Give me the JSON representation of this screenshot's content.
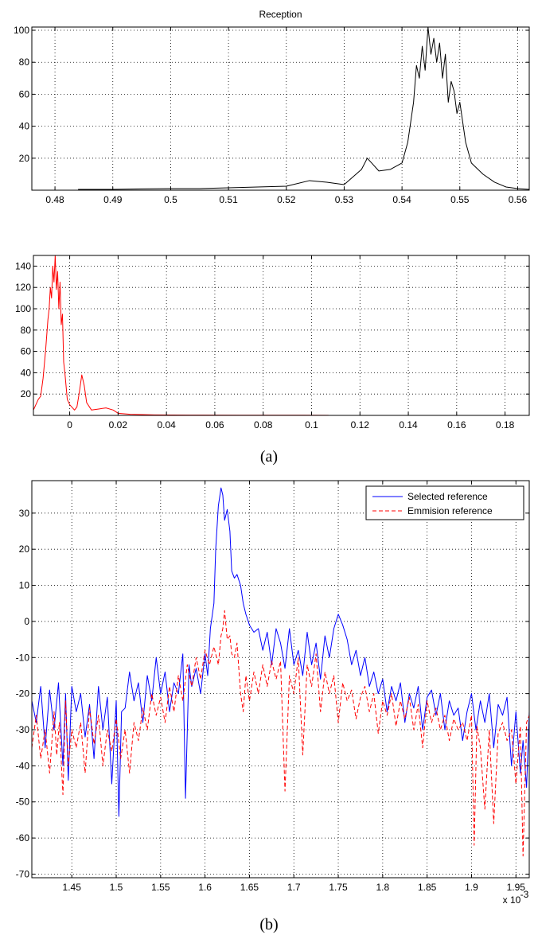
{
  "captions": {
    "a": "(a)",
    "b": "(b)"
  },
  "chart_data": [
    {
      "type": "line",
      "title": "Reception",
      "xlim": [
        0.476,
        0.562
      ],
      "ylim": [
        0,
        102
      ],
      "xticks": [
        0.48,
        0.49,
        0.5,
        0.51,
        0.52,
        0.53,
        0.54,
        0.55,
        0.56
      ],
      "xtick_labels": [
        "0.48",
        "0.49",
        "0.5",
        "0.51",
        "0.52",
        "0.53",
        "0.54",
        "0.55",
        "0.56"
      ],
      "yticks": [
        20,
        40,
        60,
        80,
        100
      ],
      "ytick_labels": [
        "20",
        "40",
        "60",
        "80",
        "100"
      ],
      "grid": true,
      "series": [
        {
          "color": "#000000",
          "x": [
            0.484,
            0.49,
            0.495,
            0.5,
            0.505,
            0.51,
            0.515,
            0.52,
            0.524,
            0.527,
            0.53,
            0.533,
            0.534,
            0.535,
            0.536,
            0.538,
            0.54,
            0.541,
            0.542,
            0.5425,
            0.543,
            0.5435,
            0.544,
            0.5445,
            0.545,
            0.5455,
            0.546,
            0.5465,
            0.547,
            0.5475,
            0.548,
            0.5485,
            0.549,
            0.5495,
            0.55,
            0.551,
            0.552,
            0.554,
            0.556,
            0.558,
            0.56,
            0.562
          ],
          "y": [
            0.5,
            0.5,
            0.8,
            1,
            1,
            1.5,
            2,
            2.5,
            6,
            5,
            3.5,
            13,
            20,
            16,
            12,
            13,
            17,
            30,
            55,
            78,
            70,
            90,
            75,
            102,
            85,
            95,
            80,
            92,
            70,
            85,
            55,
            68,
            62,
            48,
            55,
            30,
            17,
            10,
            5,
            2,
            1,
            0.5
          ]
        }
      ]
    },
    {
      "type": "line",
      "xlim": [
        -0.015,
        0.19
      ],
      "ylim": [
        0,
        150
      ],
      "xticks": [
        0,
        0.02,
        0.04,
        0.06,
        0.08,
        0.1,
        0.12,
        0.14,
        0.16,
        0.18
      ],
      "xtick_labels": [
        "0",
        "0.02",
        "0.04",
        "0.06",
        "0.08",
        "0.1",
        "0.12",
        "0.14",
        "0.16",
        "0.18"
      ],
      "yticks": [
        20,
        40,
        60,
        80,
        100,
        120,
        140
      ],
      "ytick_labels": [
        "20",
        "40",
        "60",
        "80",
        "100",
        "120",
        "140"
      ],
      "grid": true,
      "series": [
        {
          "color": "#ff0000",
          "x": [
            -0.015,
            -0.013,
            -0.012,
            -0.011,
            -0.01,
            -0.009,
            -0.0085,
            -0.008,
            -0.0075,
            -0.007,
            -0.0065,
            -0.006,
            -0.0055,
            -0.005,
            -0.0045,
            -0.004,
            -0.0035,
            -0.003,
            -0.0025,
            -0.002,
            -0.001,
            0.0,
            0.002,
            0.003,
            0.004,
            0.005,
            0.006,
            0.007,
            0.009,
            0.012,
            0.015,
            0.018,
            0.02,
            0.025,
            0.035,
            0.05,
            0.07,
            0.09,
            0.107
          ],
          "y": [
            5,
            15,
            18,
            35,
            60,
            90,
            100,
            120,
            110,
            140,
            125,
            150,
            118,
            135,
            100,
            125,
            85,
            95,
            50,
            40,
            15,
            10,
            5,
            8,
            22,
            38,
            28,
            12,
            5,
            6,
            7,
            5,
            2,
            1,
            0.5,
            0.3,
            0.2,
            0.2,
            0.1
          ]
        }
      ]
    },
    {
      "type": "line",
      "xlim": [
        1.405,
        1.965
      ],
      "ylim": [
        -71,
        39
      ],
      "xticks": [
        1.45,
        1.5,
        1.55,
        1.6,
        1.65,
        1.7,
        1.75,
        1.8,
        1.85,
        1.9,
        1.95
      ],
      "xtick_labels": [
        "1.45",
        "1.5",
        "1.55",
        "1.6",
        "1.65",
        "1.7",
        "1.75",
        "1.8",
        "1.85",
        "1.9",
        "1.95"
      ],
      "x_multiplier": "x 10",
      "x_multiplier_exp": "-3",
      "yticks": [
        -70,
        -60,
        -50,
        -40,
        -30,
        -20,
        -10,
        0,
        10,
        20,
        30
      ],
      "ytick_labels": [
        "-70",
        "-60",
        "-50",
        "-40",
        "-30",
        "-20",
        "-10",
        "0",
        "10",
        "20",
        "30"
      ],
      "grid": true,
      "legend": "top-right",
      "series": [
        {
          "name": "Selected reference",
          "color": "#0000ff",
          "style": "solid",
          "x": [
            1.405,
            1.41,
            1.415,
            1.42,
            1.425,
            1.43,
            1.435,
            1.44,
            1.443,
            1.446,
            1.45,
            1.455,
            1.46,
            1.465,
            1.47,
            1.475,
            1.48,
            1.485,
            1.49,
            1.495,
            1.5,
            1.503,
            1.506,
            1.51,
            1.515,
            1.52,
            1.525,
            1.53,
            1.535,
            1.54,
            1.545,
            1.55,
            1.555,
            1.56,
            1.565,
            1.57,
            1.575,
            1.578,
            1.582,
            1.585,
            1.59,
            1.595,
            1.6,
            1.603,
            1.606,
            1.61,
            1.612,
            1.615,
            1.618,
            1.62,
            1.622,
            1.625,
            1.628,
            1.63,
            1.633,
            1.636,
            1.64,
            1.643,
            1.646,
            1.65,
            1.655,
            1.66,
            1.665,
            1.67,
            1.675,
            1.68,
            1.685,
            1.69,
            1.695,
            1.7,
            1.705,
            1.71,
            1.715,
            1.72,
            1.725,
            1.73,
            1.735,
            1.74,
            1.745,
            1.75,
            1.755,
            1.76,
            1.765,
            1.77,
            1.775,
            1.78,
            1.785,
            1.79,
            1.795,
            1.8,
            1.805,
            1.81,
            1.815,
            1.82,
            1.825,
            1.83,
            1.835,
            1.84,
            1.845,
            1.85,
            1.855,
            1.86,
            1.865,
            1.87,
            1.875,
            1.88,
            1.885,
            1.89,
            1.895,
            1.9,
            1.905,
            1.91,
            1.915,
            1.92,
            1.925,
            1.93,
            1.935,
            1.94,
            1.945,
            1.95,
            1.955,
            1.958,
            1.962,
            1.965
          ],
          "y": [
            -22,
            -28,
            -18,
            -35,
            -19,
            -30,
            -17,
            -40,
            -20,
            -44,
            -18,
            -25,
            -20,
            -32,
            -23,
            -38,
            -18,
            -30,
            -21,
            -45,
            -22,
            -54,
            -25,
            -24,
            -14,
            -22,
            -17,
            -28,
            -15,
            -22,
            -10,
            -20,
            -14,
            -25,
            -17,
            -20,
            -9,
            -49,
            -12,
            -18,
            -13,
            -20,
            -9,
            -15,
            -2,
            5,
            20,
            32,
            37,
            35,
            28,
            31,
            25,
            14,
            12,
            13,
            10,
            5,
            2,
            -1,
            -3,
            -2,
            -8,
            -3,
            -12,
            -2,
            -6,
            -13,
            -2,
            -12,
            -8,
            -15,
            -3,
            -12,
            -6,
            -16,
            -4,
            -10,
            -2,
            2,
            -1,
            -5,
            -12,
            -8,
            -15,
            -10,
            -18,
            -14,
            -20,
            -16,
            -25,
            -18,
            -22,
            -17,
            -28,
            -20,
            -24,
            -18,
            -30,
            -21,
            -19,
            -26,
            -20,
            -30,
            -22,
            -26,
            -24,
            -33,
            -25,
            -20,
            -30,
            -22,
            -28,
            -20,
            -35,
            -23,
            -26,
            -21,
            -40,
            -25,
            -42,
            -33,
            -46,
            -25
          ]
        },
        {
          "name": "Emmision reference",
          "color": "#ff0000",
          "style": "dashed",
          "x": [
            1.405,
            1.41,
            1.415,
            1.42,
            1.425,
            1.43,
            1.433,
            1.436,
            1.44,
            1.443,
            1.446,
            1.45,
            1.455,
            1.46,
            1.465,
            1.47,
            1.475,
            1.48,
            1.485,
            1.49,
            1.495,
            1.5,
            1.505,
            1.51,
            1.515,
            1.52,
            1.525,
            1.53,
            1.535,
            1.54,
            1.545,
            1.55,
            1.555,
            1.56,
            1.565,
            1.57,
            1.575,
            1.58,
            1.585,
            1.59,
            1.595,
            1.6,
            1.605,
            1.61,
            1.615,
            1.618,
            1.62,
            1.622,
            1.625,
            1.628,
            1.63,
            1.633,
            1.636,
            1.64,
            1.643,
            1.646,
            1.65,
            1.655,
            1.66,
            1.665,
            1.67,
            1.675,
            1.68,
            1.685,
            1.69,
            1.695,
            1.7,
            1.705,
            1.71,
            1.715,
            1.72,
            1.725,
            1.73,
            1.735,
            1.74,
            1.745,
            1.75,
            1.755,
            1.76,
            1.765,
            1.77,
            1.775,
            1.78,
            1.785,
            1.79,
            1.795,
            1.8,
            1.805,
            1.81,
            1.815,
            1.82,
            1.825,
            1.83,
            1.835,
            1.84,
            1.845,
            1.85,
            1.855,
            1.86,
            1.865,
            1.87,
            1.875,
            1.88,
            1.885,
            1.89,
            1.895,
            1.9,
            1.903,
            1.906,
            1.91,
            1.915,
            1.92,
            1.925,
            1.93,
            1.935,
            1.94,
            1.945,
            1.95,
            1.955,
            1.958,
            1.962,
            1.965
          ],
          "y": [
            -35,
            -26,
            -38,
            -30,
            -42,
            -25,
            -37,
            -28,
            -48,
            -22,
            -40,
            -30,
            -35,
            -28,
            -42,
            -24,
            -34,
            -26,
            -40,
            -30,
            -36,
            -27,
            -38,
            -30,
            -42,
            -28,
            -33,
            -24,
            -30,
            -20,
            -26,
            -21,
            -28,
            -18,
            -25,
            -15,
            -22,
            -12,
            -18,
            -10,
            -16,
            -8,
            -12,
            -7,
            -12,
            -4,
            -2,
            3,
            -5,
            -4,
            -9,
            -10,
            -6,
            -20,
            -25,
            -15,
            -22,
            -14,
            -20,
            -12,
            -18,
            -11,
            -16,
            -11,
            -47,
            -15,
            -20,
            -10,
            -37,
            -12,
            -18,
            -9,
            -25,
            -14,
            -20,
            -15,
            -28,
            -17,
            -22,
            -19,
            -27,
            -21,
            -18,
            -25,
            -20,
            -31,
            -22,
            -26,
            -20,
            -29,
            -22,
            -27,
            -21,
            -30,
            -23,
            -35,
            -22,
            -28,
            -24,
            -30,
            -26,
            -33,
            -27,
            -30,
            -28,
            -33,
            -26,
            -62,
            -29,
            -35,
            -52,
            -30,
            -56,
            -31,
            -28,
            -33,
            -30,
            -45,
            -29,
            -65,
            -28,
            -26
          ]
        }
      ]
    }
  ]
}
